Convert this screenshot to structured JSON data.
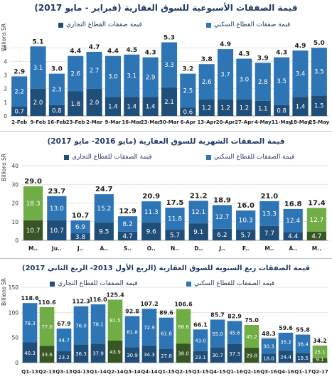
{
  "colors": {
    "residential": "#2e75b6",
    "commercial": "#1f4e79",
    "highlight_res": "#70ad47",
    "highlight_com": "#375623",
    "text": "#1f3864"
  },
  "panel1": {
    "title": "قيمة الصفقات الأسبوعية للسوق العقارية (فبراير - مايو 2017)",
    "legend_residential": "قيمة صفقات القطاع السكني",
    "legend_commercial": "قيمة صفقات القطاع التجاري",
    "ylabel": "Billions SR"
  },
  "panel2": {
    "title": "قيمة الصفقات الشهرية للسوق العقارية (مايو 2016- مايو 2017)",
    "legend_residential": "قيمة الصفقات للقطاع السكني",
    "legend_commercial": "قيمة الصفقات للقطاع التجاري",
    "ylabel": "Billions SR"
  },
  "panel3": {
    "title": "قيمة الصفقات ربع السنوية للسوق العقارية (الربع الأول 2013- الربع الثاني 2017)",
    "legend_residential": "قيمة الصفقات للقطاع السكني",
    "legend_commercial": "قيمة الصفقات للقطاع التجاري",
    "ylabel": "Billions SR"
  },
  "chart_data": [
    {
      "type": "bar",
      "stacked": true,
      "categories": [
        "2-Feb",
        "9-Feb",
        "16-Feb",
        "23-Feb",
        "2-Mar",
        "9-Mar",
        "16-Mar",
        "23-Mar",
        "30-Mar",
        "6-Apr",
        "13-Apr",
        "20-Apr",
        "27-Apr",
        "4-May",
        "11-May",
        "18-May",
        "25-May"
      ],
      "series": [
        {
          "name": "قيمة صفقات القطاع التجاري",
          "values": [
            0.7,
            2.0,
            0.8,
            1.8,
            2.0,
            1.4,
            1.4,
            1.4,
            2.1,
            0.6,
            1.2,
            1.2,
            1.2,
            1.1,
            0.8,
            1.4,
            1.5
          ]
        },
        {
          "name": "قيمة صفقات القطاع السكني",
          "values": [
            2.2,
            3.1,
            2.3,
            2.6,
            2.7,
            3.0,
            3.1,
            2.9,
            3.3,
            2.5,
            2.6,
            3.7,
            3.0,
            2.8,
            3.5,
            3.4,
            3.5
          ]
        }
      ],
      "totals": [
        2.9,
        5.1,
        3.0,
        4.4,
        4.7,
        4.4,
        4.5,
        4.3,
        5.3,
        3.2,
        3.8,
        4.9,
        4.3,
        3.9,
        4.3,
        4.9,
        5.0
      ],
      "ylim": [
        0,
        6
      ],
      "yticks": [
        0,
        1,
        2,
        3,
        4,
        5
      ],
      "grid": true
    },
    {
      "type": "bar",
      "stacked": true,
      "categories": [
        "M..",
        "Ju..",
        "J..",
        "A..",
        "S..",
        "O..",
        "N..",
        "D..",
        "J..",
        "F..",
        "M..",
        "A..",
        "M.."
      ],
      "highlight": [
        0,
        12
      ],
      "series": [
        {
          "name": "قيمة الصفقات للقطاع التجاري",
          "values": [
            10.7,
            10.7,
            3.8,
            9.5,
            4.7,
            9.6,
            5.7,
            9.1,
            6.2,
            5.7,
            7.7,
            4.4,
            4.7
          ]
        },
        {
          "name": "قيمة الصفقات للقطاع السكني",
          "values": [
            18.3,
            13.0,
            6.9,
            15.2,
            8.2,
            11.3,
            11.8,
            12.1,
            12.7,
            10.3,
            13.3,
            12.4,
            12.7
          ]
        }
      ],
      "totals": [
        29.0,
        23.7,
        10.7,
        24.7,
        12.9,
        20.9,
        17.5,
        21.2,
        18.9,
        16.0,
        21.0,
        16.8,
        17.4
      ],
      "ylim": [
        0,
        40
      ],
      "yticks": [
        0,
        10,
        20,
        30,
        40
      ],
      "grid": true
    },
    {
      "type": "bar",
      "stacked": true,
      "categories": [
        "Q1-13",
        "Q2-13",
        "Q3-13",
        "Q4-13",
        "Q1-14",
        "Q2-14",
        "Q3-14",
        "Q4-14",
        "Q1-15",
        "Q2-15",
        "Q3-15",
        "Q4-15",
        "Q1-16",
        "Q2-16",
        "Q3-16",
        "Q4-16",
        "Q1-17",
        "Q2-17"
      ],
      "highlight": [
        1,
        5,
        9,
        13,
        17
      ],
      "series": [
        {
          "name": "قيمة الصفقات للقطاع التجاري",
          "values": [
            40.3,
            33.6,
            23.2,
            36.3,
            37.9,
            43.9,
            30.9,
            34.3,
            27.8,
            38.0,
            23.1,
            30.7,
            37.3,
            29.8,
            18.0,
            24.4,
            19.5,
            9.1
          ]
        },
        {
          "name": "قيمة الصفقات للقطاع السكني",
          "values": [
            78.3,
            77.0,
            44.7,
            76.0,
            78.1,
            81.5,
            61.8,
            72.9,
            61.8,
            68.6,
            43.0,
            55.0,
            45.6,
            45.2,
            30.3,
            35.2,
            36.4,
            25.1
          ]
        }
      ],
      "totals": [
        118.6,
        110.6,
        67.9,
        112.3,
        116.0,
        125.4,
        92.8,
        107.2,
        89.6,
        106.6,
        66.1,
        85.7,
        82.9,
        75.0,
        48.3,
        59.6,
        55.8,
        34.2
      ],
      "ylim": [
        0,
        150
      ],
      "yticks": [
        0,
        50,
        100,
        150
      ],
      "grid": true
    }
  ]
}
